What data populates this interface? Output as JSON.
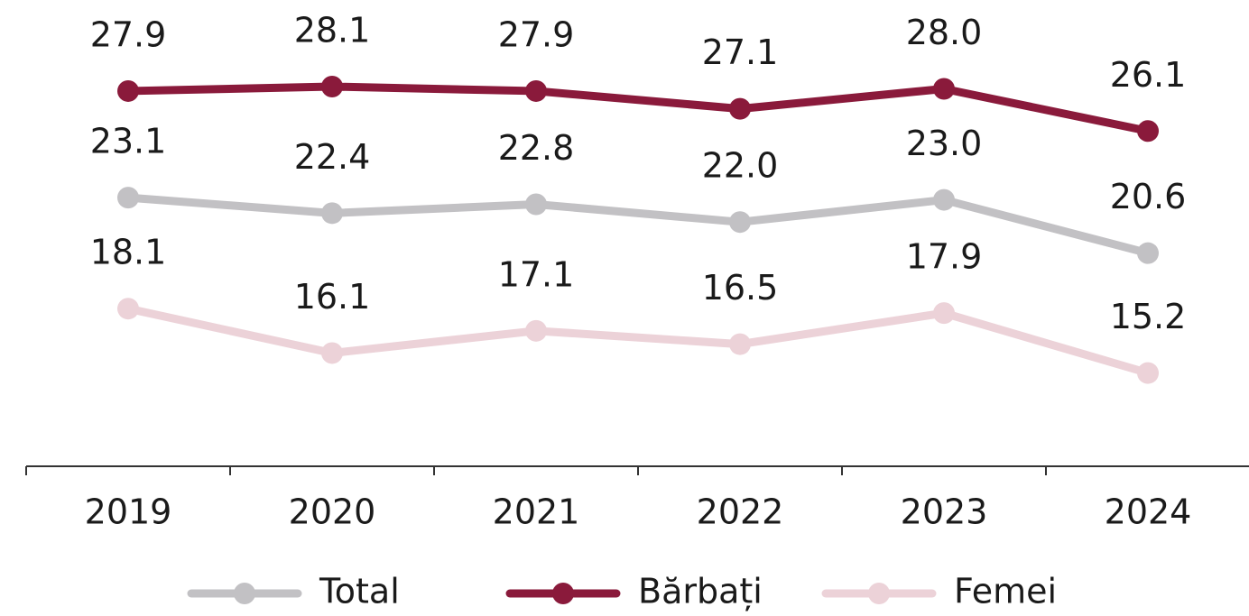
{
  "chart_data": {
    "type": "line",
    "categories": [
      "2019",
      "2020",
      "2021",
      "2022",
      "2023",
      "2024"
    ],
    "series": [
      {
        "name": "Total",
        "color": "#c2c1c4",
        "values": [
          23.1,
          22.4,
          22.8,
          22.0,
          23.0,
          20.6
        ],
        "value_labels": [
          "23.1",
          "22.4",
          "22.8",
          "22.0",
          "23.0",
          "20.6"
        ]
      },
      {
        "name": "Bărbați",
        "color": "#8a1a3b",
        "values": [
          27.9,
          28.1,
          27.9,
          27.1,
          28.0,
          26.1
        ],
        "value_labels": [
          "27.9",
          "28.1",
          "27.9",
          "27.1",
          "28.0",
          "26.1"
        ]
      },
      {
        "name": "Femei",
        "color": "#ecd2d8",
        "values": [
          18.1,
          16.1,
          17.1,
          16.5,
          17.9,
          15.2
        ],
        "value_labels": [
          "18.1",
          "16.1",
          "17.1",
          "16.5",
          "17.9",
          "15.2"
        ]
      }
    ],
    "ylim": [
      11,
      32
    ],
    "legend": "bottom"
  }
}
